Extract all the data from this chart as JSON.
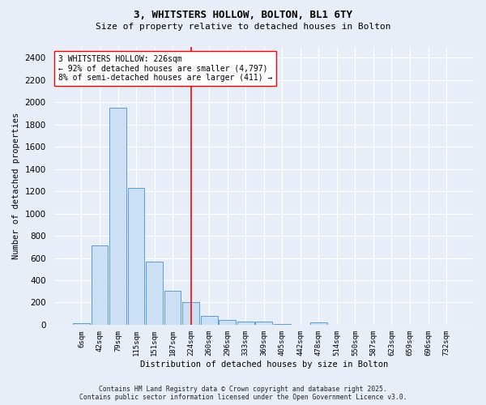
{
  "title_line1": "3, WHITSTERS HOLLOW, BOLTON, BL1 6TY",
  "title_line2": "Size of property relative to detached houses in Bolton",
  "xlabel": "Distribution of detached houses by size in Bolton",
  "ylabel": "Number of detached properties",
  "bin_labels": [
    "6sqm",
    "42sqm",
    "79sqm",
    "115sqm",
    "151sqm",
    "187sqm",
    "224sqm",
    "260sqm",
    "296sqm",
    "333sqm",
    "369sqm",
    "405sqm",
    "442sqm",
    "478sqm",
    "514sqm",
    "550sqm",
    "587sqm",
    "623sqm",
    "659sqm",
    "696sqm",
    "732sqm"
  ],
  "bar_heights": [
    15,
    710,
    1950,
    1230,
    570,
    305,
    200,
    80,
    40,
    30,
    30,
    10,
    0,
    20,
    0,
    0,
    0,
    0,
    0,
    0,
    0
  ],
  "bar_color": "#cce0f5",
  "bar_edge_color": "#5b9bd5",
  "vline_x": 6.0,
  "vline_color": "red",
  "annotation_text": "3 WHITSTERS HOLLOW: 226sqm\n← 92% of detached houses are smaller (4,797)\n8% of semi-detached houses are larger (411) →",
  "annotation_box_color": "white",
  "annotation_box_edge": "red",
  "ylim": [
    0,
    2500
  ],
  "yticks": [
    0,
    200,
    400,
    600,
    800,
    1000,
    1200,
    1400,
    1600,
    1800,
    2000,
    2200,
    2400
  ],
  "background_color": "#e8eef8",
  "grid_color": "white",
  "footer_line1": "Contains HM Land Registry data © Crown copyright and database right 2025.",
  "footer_line2": "Contains public sector information licensed under the Open Government Licence v3.0."
}
